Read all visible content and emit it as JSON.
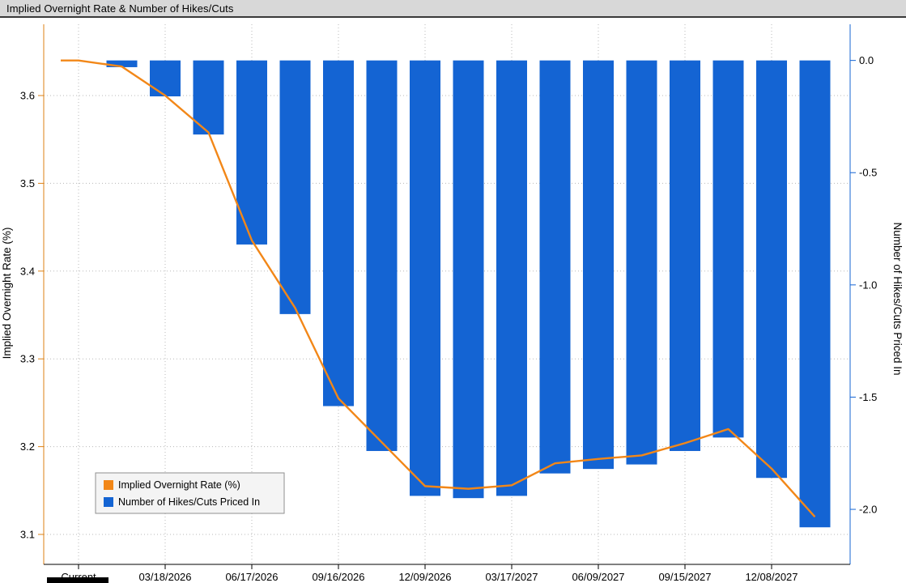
{
  "header": {
    "title": "Implied Overnight Rate & Number of Hikes/Cuts"
  },
  "colors": {
    "bar": "#1464d3",
    "line": "#f28718",
    "left_axis_line": "#de8214",
    "right_axis_line": "#1464d3",
    "grid": "#b8b8b8",
    "title_bar_bg": "#d8d8d8"
  },
  "chart_data": {
    "type": "combo",
    "title": "Implied Overnight Rate & Number of Hikes/Cuts",
    "grid": "dotted",
    "x_axis": {
      "tick_labels": [
        "Current",
        "03/18/2026",
        "06/17/2026",
        "09/16/2026",
        "12/09/2026",
        "03/17/2027",
        "06/09/2027",
        "09/15/2027",
        "12/08/2027"
      ],
      "label_meeting_indices": [
        2,
        4,
        6,
        8,
        10,
        12,
        14,
        16
      ]
    },
    "left_axis": {
      "label": "Implied Overnight Rate (%)",
      "tick_labels": [
        "3.1",
        "3.2",
        "3.3",
        "3.4",
        "3.5",
        "3.6"
      ],
      "range": [
        3.05,
        3.68
      ]
    },
    "right_axis": {
      "label": "Number of Hikes/Cuts Priced In",
      "tick_labels": [
        "0.0",
        "-0.5",
        "-1.0",
        "-1.5",
        "-2.0"
      ],
      "range": [
        0.18,
        -2.25
      ]
    },
    "series": [
      {
        "name": "Implied Overnight Rate (%)",
        "type": "line",
        "axis": "left",
        "color": "#f28718",
        "first_point_label": "Current",
        "values": [
          3.64,
          3.633,
          3.6,
          3.558,
          3.435,
          3.358,
          3.255,
          3.205,
          3.155,
          3.152,
          3.156,
          3.181,
          3.186,
          3.19,
          3.204,
          3.22,
          3.175,
          3.12
        ]
      },
      {
        "name": "Number of Hikes/Cuts Priced In",
        "type": "bar",
        "axis": "right",
        "color": "#1464d3",
        "values": [
          -0.03,
          -0.16,
          -0.33,
          -0.82,
          -1.13,
          -1.54,
          -1.74,
          -1.94,
          -1.95,
          -1.94,
          -1.84,
          -1.82,
          -1.8,
          -1.74,
          -1.68,
          -1.86,
          -2.08
        ]
      }
    ],
    "legend": {
      "position": "bottom-left",
      "entries": [
        "Implied Overnight Rate (%)",
        "Number of Hikes/Cuts Priced In"
      ]
    }
  }
}
